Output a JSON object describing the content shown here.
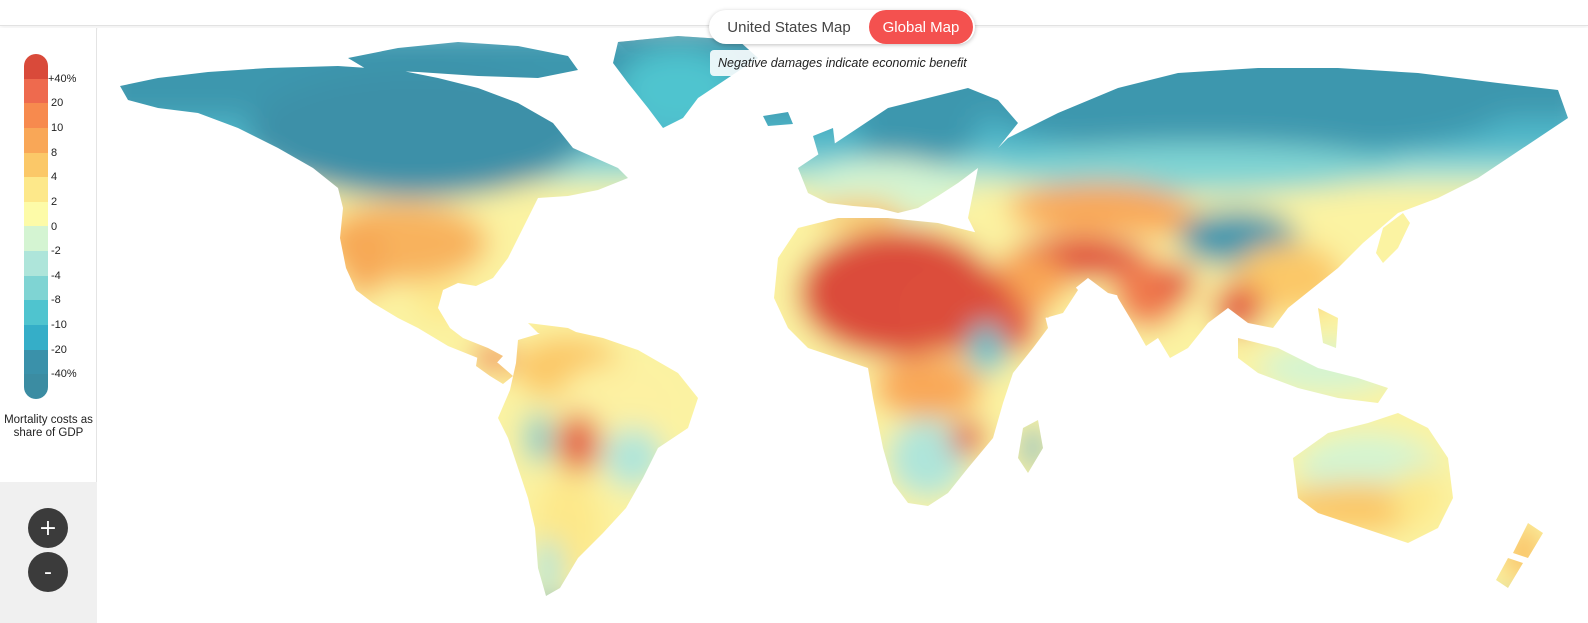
{
  "toggle": {
    "us_label": "United States Map",
    "global_label": "Global Map",
    "active": "global"
  },
  "note": "Negative damages indicate economic benefit",
  "legend": {
    "title": "Mortality costs as share of GDP",
    "bins": [
      {
        "label": "+40%",
        "color": "#d94a3a"
      },
      {
        "label": "20",
        "color": "#ee6a4e"
      },
      {
        "label": "10",
        "color": "#f78a4e"
      },
      {
        "label": "8",
        "color": "#f9a757"
      },
      {
        "label": "4",
        "color": "#fbc868"
      },
      {
        "label": "2",
        "color": "#fde88a"
      },
      {
        "label": "0",
        "color": "#fdfba8"
      },
      {
        "label": "-2",
        "color": "#d4f4d2"
      },
      {
        "label": "-4",
        "color": "#aee5da"
      },
      {
        "label": "-8",
        "color": "#7fd4d3"
      },
      {
        "label": "-10",
        "color": "#4fc4cf"
      },
      {
        "label": "-20",
        "color": "#35aec8"
      },
      {
        "label": "-40%",
        "color": "#3a91aa"
      },
      {
        "label": "",
        "color": "#3b8ca2"
      }
    ]
  },
  "zoom": {
    "in_label": "+",
    "out_label": "-"
  },
  "map": {
    "ocean_color": "#ffffff",
    "nodata_color": "#c8c8c8"
  }
}
